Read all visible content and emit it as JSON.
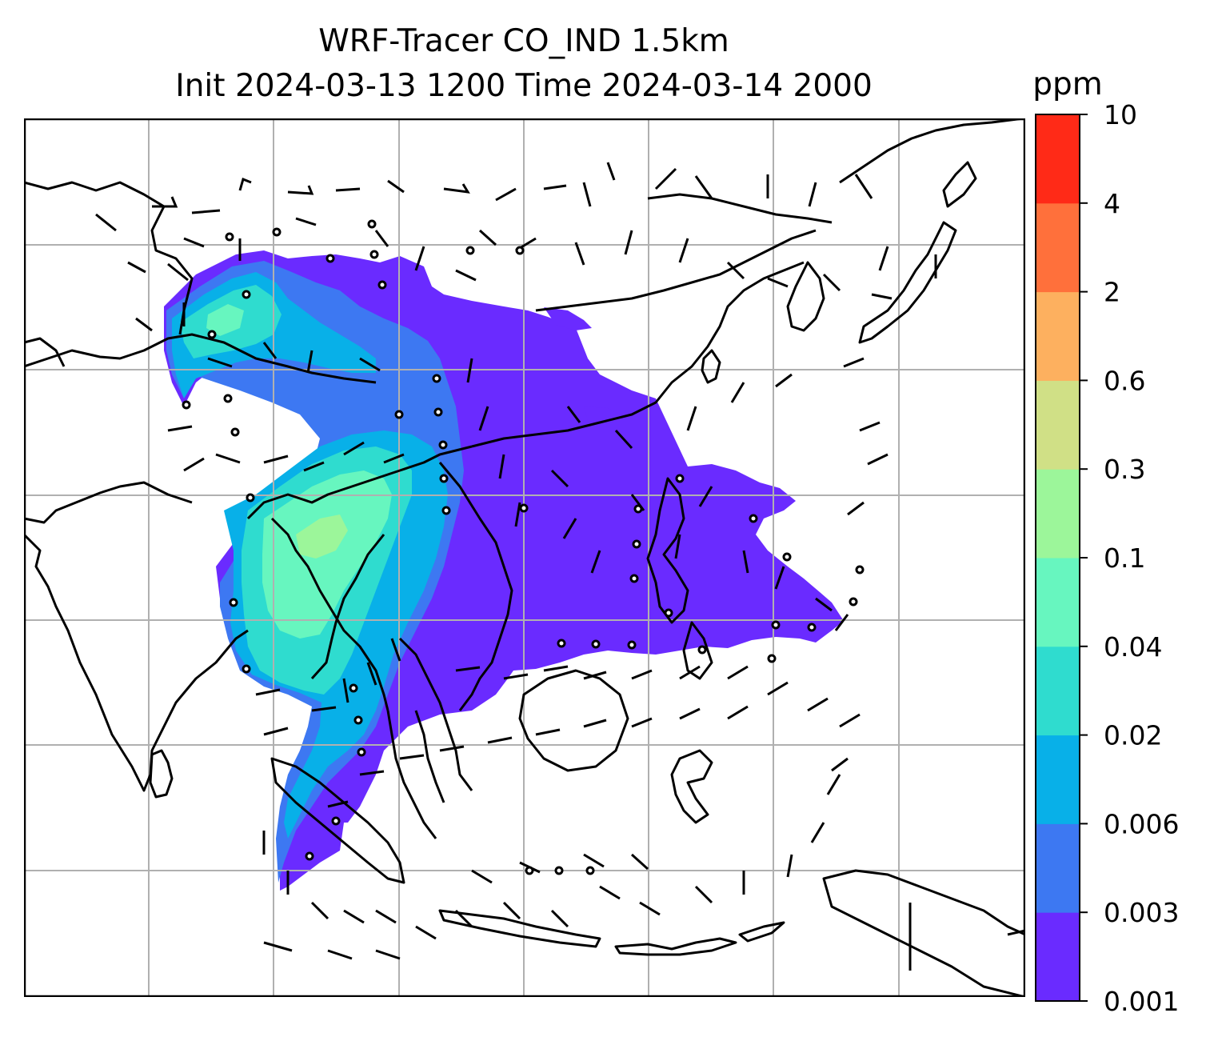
{
  "title": {
    "line1": "WRF-Tracer CO_IND 1.5km",
    "line2": "Init 2024-03-13 1200 Time 2024-03-14 2000"
  },
  "colorbar": {
    "unit": "ppm",
    "levels": [
      {
        "label": "0.001",
        "color": "#6a2bff"
      },
      {
        "label": "0.003",
        "color": "#3d78f2"
      },
      {
        "label": "0.006",
        "color": "#08b0e8"
      },
      {
        "label": "0.02",
        "color": "#2fdccf"
      },
      {
        "label": "0.04",
        "color": "#67f6bf"
      },
      {
        "label": "0.1",
        "color": "#9cf69a"
      },
      {
        "label": "0.3",
        "color": "#d0e086"
      },
      {
        "label": "0.6",
        "color": "#fdb05f"
      },
      {
        "label": "2",
        "color": "#ff703b"
      },
      {
        "label": "4",
        "color": "#ff2a17"
      },
      {
        "label": "10",
        "color": null
      }
    ]
  },
  "map": {
    "gridlines": true,
    "coastlines": true,
    "wind_barbs": true,
    "calm_markers": true
  }
}
